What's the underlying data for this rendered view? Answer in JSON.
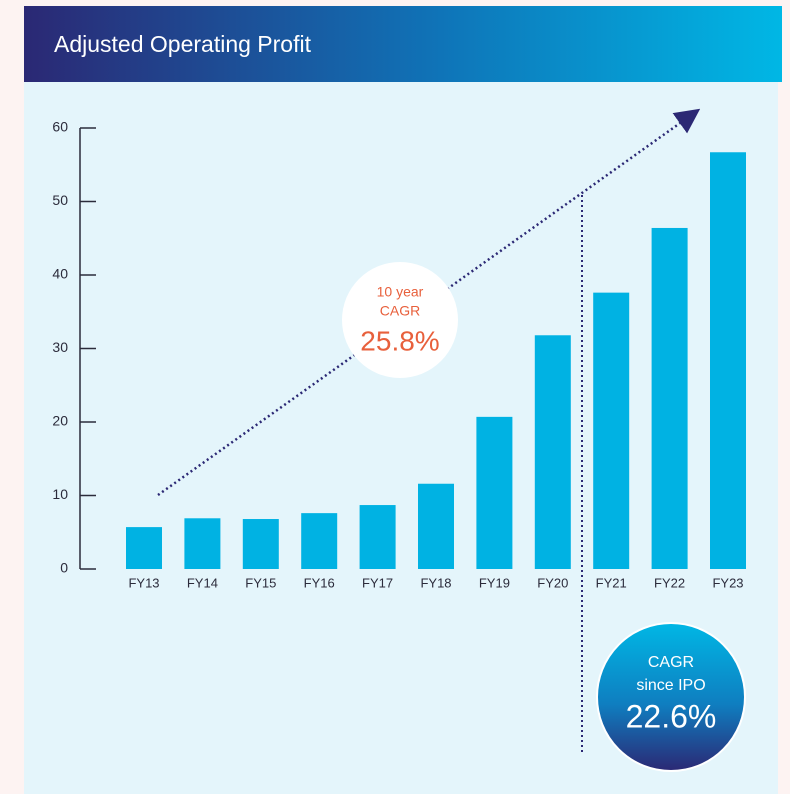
{
  "chart_data": {
    "type": "bar",
    "title": "Adjusted Operating Profit",
    "categories": [
      "FY13",
      "FY14",
      "FY15",
      "FY16",
      "FY17",
      "FY18",
      "FY19",
      "FY20",
      "FY21",
      "FY22",
      "FY23"
    ],
    "values": [
      5.7,
      6.9,
      6.8,
      7.6,
      8.7,
      11.6,
      20.7,
      31.8,
      37.6,
      46.4,
      56.7
    ],
    "color": "#00b2e3",
    "ylim": [
      0,
      60
    ],
    "yticks": [
      0,
      10,
      20,
      30,
      40,
      50,
      60
    ],
    "grid": false,
    "annotations": [
      {
        "lines": [
          "10 year",
          "CAGR"
        ],
        "value_text": "25.8%"
      },
      {
        "lines": [
          "CAGR",
          "since IPO"
        ],
        "value_text": "22.6%"
      }
    ]
  }
}
